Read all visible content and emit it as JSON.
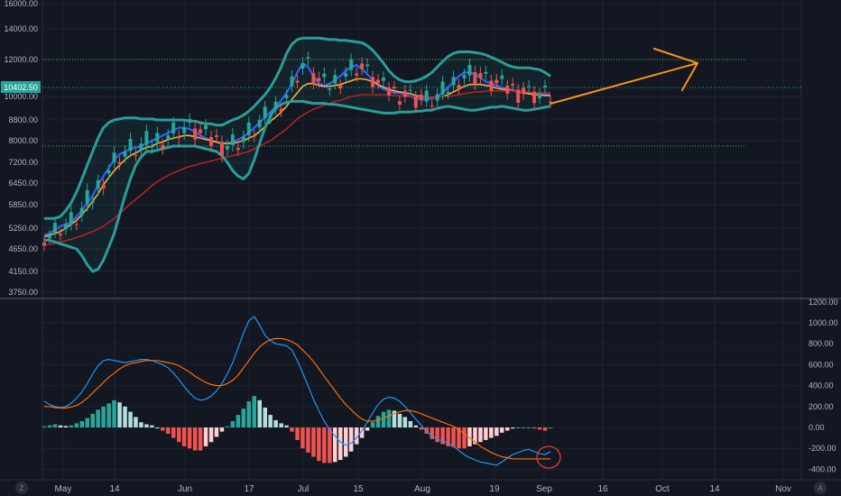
{
  "colors": {
    "background": "#131722",
    "grid": "#1f2330",
    "candle_up": "#26a69a",
    "candle_down": "#ef5350",
    "bollinger": "#2a9d97",
    "ema_fast": "#2962ff",
    "ema_mid": "#f5b041",
    "ema_slow": "#b22222",
    "macd_line": "#2196f3",
    "signal_line": "#ff6d00",
    "hist_up": "#26a69a",
    "hist_down": "#ef5350",
    "hline": "#4caf50",
    "arrow": "#f7931a",
    "circle": "#e53935",
    "current_price_tag": "#26a69a"
  },
  "corner_buttons": {
    "left": "Z",
    "right": "A"
  },
  "chart_data": [
    {
      "type": "line",
      "subtype": "candlestick",
      "ylim": [
        3500,
        16500
      ],
      "y_ticks": [
        "3750.00",
        "4150.00",
        "4650.00",
        "5250.00",
        "5850.00",
        "6450.00",
        "7200.00",
        "8000.00",
        "8800.00",
        "10000.00",
        "12000.00",
        "14000.00",
        "16000.00"
      ],
      "current_price": "10402.50",
      "x_ticks": [
        "May",
        "14",
        "Jun",
        "17",
        "Jul",
        "15",
        "Aug",
        "19",
        "Sep",
        "16",
        "Oct",
        "14",
        "Nov"
      ],
      "grid": false,
      "annotations": {
        "horizontal_levels": [
          12000,
          7800
        ],
        "forecast_arrow": {
          "from_value": 10000,
          "to_value": 12000
        }
      },
      "series": [
        {
          "values": [
            5050,
            5100,
            5200,
            5300,
            5350,
            5400,
            5550,
            5700,
            5900,
            6100,
            6400,
            6700,
            7000,
            7300,
            7500,
            7600,
            7700,
            7750,
            7800,
            7900,
            8000,
            8100,
            8200,
            8300,
            8400,
            8500,
            8500,
            8450,
            8350,
            8200,
            8100,
            8000,
            7950,
            7900,
            7900,
            7950,
            8050,
            8150,
            8300,
            8500,
            8700,
            8950,
            9200,
            9500,
            9800,
            10200,
            10700,
            11300,
            11800,
            11600,
            11100,
            10700,
            10600,
            10700,
            10900,
            11100,
            11400,
            11600,
            11700,
            11500,
            11200,
            10900,
            10600,
            10400,
            10300,
            10200,
            10200,
            10100,
            10000,
            9900,
            9850,
            9850,
            9900,
            10000,
            10200,
            10500,
            10800,
            11100,
            11300,
            11300,
            11200,
            11000,
            10800,
            10700,
            10600,
            10500,
            10400,
            10350,
            10300,
            10250,
            10200,
            10150,
            10150,
            10100,
            10100
          ]
        },
        {
          "values": [
            5000,
            5050,
            5100,
            5150,
            5250,
            5350,
            5450,
            5600,
            5750,
            5950,
            6150,
            6400,
            6650,
            6900,
            7100,
            7300,
            7450,
            7550,
            7650,
            7750,
            7800,
            7900,
            7950,
            8050,
            8100,
            8150,
            8200,
            8200,
            8150,
            8100,
            8050,
            8000,
            7950,
            7900,
            7900,
            7900,
            7950,
            8000,
            8100,
            8200,
            8350,
            8550,
            8750,
            8950,
            9200,
            9500,
            9850,
            10200,
            10550,
            10700,
            10700,
            10600,
            10550,
            10550,
            10600,
            10650,
            10750,
            10850,
            10950,
            10950,
            10900,
            10800,
            10650,
            10500,
            10400,
            10300,
            10250,
            10200,
            10150,
            10050,
            10000,
            9950,
            9950,
            9950,
            10000,
            10100,
            10250,
            10400,
            10550,
            10650,
            10650,
            10650,
            10600,
            10550,
            10450,
            10400,
            10350,
            10300,
            10250,
            10200,
            10150,
            10100,
            10100,
            10050,
            10050
          ]
        },
        {
          "values": [
            4750,
            4780,
            4810,
            4850,
            4890,
            4930,
            4980,
            5030,
            5090,
            5150,
            5220,
            5300,
            5400,
            5500,
            5620,
            5750,
            5880,
            6000,
            6120,
            6250,
            6380,
            6500,
            6620,
            6720,
            6820,
            6900,
            6980,
            7050,
            7100,
            7150,
            7200,
            7250,
            7300,
            7350,
            7400,
            7450,
            7500,
            7550,
            7600,
            7700,
            7800,
            7900,
            8000,
            8150,
            8300,
            8450,
            8650,
            8850,
            9050,
            9200,
            9350,
            9450,
            9550,
            9650,
            9750,
            9800,
            9900,
            10000,
            10050,
            10100,
            10100,
            10100,
            10100,
            10100,
            10100,
            10050,
            10050,
            10000,
            10000,
            9950,
            9950,
            9950,
            9950,
            9950,
            10000,
            10000,
            10050,
            10100,
            10150,
            10200,
            10250,
            10250,
            10300,
            10300,
            10300,
            10300,
            10300,
            10300,
            10250,
            10250,
            10250,
            10200,
            10200,
            10200,
            10200
          ]
        }
      ],
      "bollinger_upper": [
        5500,
        5500,
        5500,
        5550,
        5700,
        5900,
        6200,
        6600,
        7100,
        7600,
        8100,
        8500,
        8700,
        8800,
        8850,
        8900,
        8900,
        8900,
        8850,
        8850,
        8850,
        8800,
        8800,
        8800,
        8800,
        8800,
        8800,
        8750,
        8750,
        8700,
        8650,
        8650,
        8600,
        8600,
        8700,
        8800,
        8900,
        9050,
        9250,
        9500,
        9800,
        10100,
        10500,
        11000,
        11600,
        12400,
        13000,
        13300,
        13400,
        13400,
        13400,
        13400,
        13350,
        13300,
        13300,
        13250,
        13250,
        13200,
        13150,
        13100,
        12900,
        12600,
        12200,
        11800,
        11400,
        11100,
        10900,
        10800,
        10800,
        10850,
        10950,
        11100,
        11300,
        11600,
        11900,
        12200,
        12400,
        12500,
        12500,
        12500,
        12450,
        12400,
        12300,
        12150,
        12000,
        11850,
        11700,
        11600,
        11550,
        11550,
        11550,
        11500,
        11450,
        11300,
        11100
      ],
      "bollinger_lower": [
        4900,
        4900,
        4850,
        4800,
        4750,
        4700,
        4650,
        4500,
        4300,
        4150,
        4200,
        4400,
        4700,
        5100,
        5600,
        6100,
        6600,
        7100,
        7400,
        7600,
        7600,
        7650,
        7700,
        7750,
        7800,
        7800,
        7800,
        7800,
        7800,
        7750,
        7700,
        7650,
        7600,
        7450,
        7200,
        6900,
        6700,
        6600,
        6800,
        7300,
        7900,
        8500,
        9000,
        9400,
        9600,
        9700,
        9750,
        9750,
        9750,
        9700,
        9650,
        9650,
        9650,
        9600,
        9600,
        9550,
        9500,
        9450,
        9400,
        9350,
        9300,
        9250,
        9200,
        9150,
        9150,
        9150,
        9200,
        9200,
        9200,
        9250,
        9250,
        9300,
        9300,
        9400,
        9450,
        9500,
        9450,
        9400,
        9350,
        9300,
        9300,
        9350,
        9400,
        9450,
        9450,
        9500,
        9450,
        9400,
        9350,
        9300,
        9300,
        9350,
        9400,
        9450,
        9500
      ]
    },
    {
      "type": "line",
      "subtype": "macd",
      "ylim": [
        -450,
        1250
      ],
      "y_ticks": [
        "-400.00",
        "-200.00",
        "0.00",
        "200.00",
        "400.00",
        "600.00",
        "800.00",
        "1000.00",
        "1200.00"
      ],
      "series": [
        {
          "values": [
            250,
            220,
            200,
            190,
            200,
            230,
            280,
            340,
            420,
            510,
            590,
            640,
            650,
            640,
            630,
            620,
            630,
            640,
            650,
            650,
            640,
            620,
            600,
            570,
            520,
            460,
            390,
            330,
            280,
            260,
            270,
            300,
            350,
            420,
            510,
            620,
            760,
            900,
            1020,
            1060,
            980,
            880,
            830,
            800,
            790,
            780,
            740,
            640,
            520,
            400,
            270,
            160,
            60,
            -20,
            -80,
            -140,
            -170,
            -150,
            -100,
            -30,
            50,
            140,
            220,
            270,
            290,
            280,
            250,
            200,
            140,
            80,
            20,
            -40,
            -80,
            -110,
            -130,
            -150,
            -180,
            -220,
            -260,
            -290,
            -310,
            -330,
            -340,
            -350,
            -360,
            -330,
            -290,
            -260,
            -240,
            -220,
            -210,
            -230,
            -250,
            -260,
            -230
          ]
        },
        {
          "values": [
            200,
            200,
            190,
            185,
            185,
            195,
            210,
            240,
            280,
            330,
            380,
            430,
            480,
            520,
            560,
            590,
            610,
            620,
            630,
            640,
            640,
            640,
            630,
            620,
            610,
            590,
            560,
            530,
            490,
            460,
            430,
            410,
            400,
            400,
            420,
            450,
            500,
            570,
            640,
            710,
            770,
            810,
            840,
            850,
            850,
            840,
            820,
            790,
            740,
            690,
            630,
            560,
            490,
            420,
            350,
            280,
            220,
            170,
            120,
            80,
            60,
            60,
            70,
            90,
            110,
            130,
            150,
            160,
            160,
            150,
            130,
            110,
            90,
            70,
            50,
            30,
            10,
            -20,
            -60,
            -100,
            -140,
            -180,
            -210,
            -240,
            -260,
            -280,
            -290,
            -300,
            -300,
            -300,
            -300,
            -300,
            -300,
            -300,
            -300
          ]
        }
      ],
      "histogram": [
        10,
        20,
        30,
        20,
        15,
        20,
        40,
        60,
        90,
        130,
        170,
        200,
        230,
        260,
        240,
        200,
        150,
        100,
        50,
        30,
        20,
        0,
        -30,
        -60,
        -100,
        -140,
        -180,
        -200,
        -220,
        -220,
        -180,
        -140,
        -90,
        -40,
        10,
        60,
        120,
        180,
        250,
        300,
        260,
        190,
        120,
        70,
        40,
        20,
        -40,
        -120,
        -200,
        -240,
        -280,
        -320,
        -340,
        -340,
        -330,
        -310,
        -280,
        -230,
        -160,
        -100,
        -30,
        50,
        110,
        150,
        170,
        160,
        130,
        100,
        60,
        20,
        -20,
        -60,
        -110,
        -140,
        -160,
        -180,
        -190,
        -200,
        -200,
        -180,
        -160,
        -140,
        -120,
        -100,
        -80,
        -50,
        -30,
        -10,
        0,
        0,
        0,
        -10,
        -20,
        -30,
        0
      ]
    }
  ]
}
